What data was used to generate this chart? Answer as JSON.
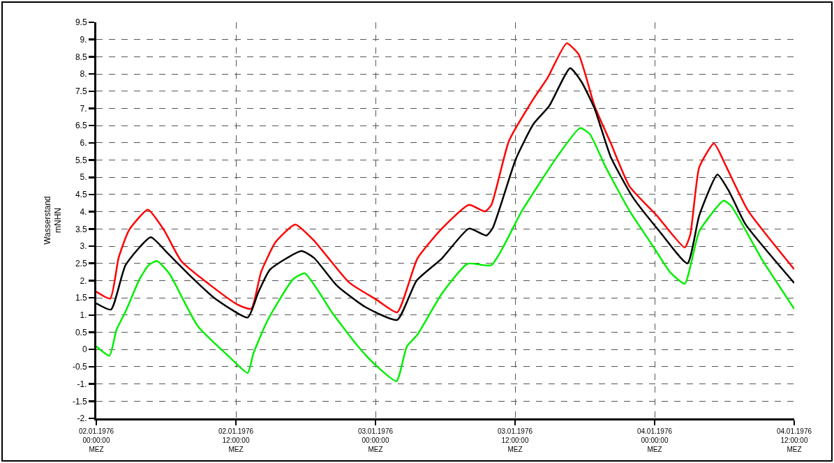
{
  "chart_data": {
    "type": "line",
    "ylabel": "Wasserstand\nmNHN",
    "xlim": [
      "1976-01-02T00:00",
      "1976-01-04T12:00"
    ],
    "xticks": [
      {
        "value": "1976-01-02T00:00",
        "label": "02.01.1976\n00:00:00\nMEZ"
      },
      {
        "value": "1976-01-02T12:00",
        "label": "02.01.1976\n12:00:00\nMEZ"
      },
      {
        "value": "1976-01-03T00:00",
        "label": "03.01.1976\n00:00:00\nMEZ"
      },
      {
        "value": "1976-01-03T12:00",
        "label": "03.01.1976\n12:00:00\nMEZ"
      },
      {
        "value": "1976-01-04T00:00",
        "label": "04.01.1976\n00:00:00\nMEZ"
      },
      {
        "value": "1976-01-04T12:00",
        "label": "04.01.1976\n12:00:00\nMEZ"
      }
    ],
    "ylim": [
      -2,
      9.5
    ],
    "yticks": [
      {
        "value": -2,
        "label": "-2."
      },
      {
        "value": -1.5,
        "label": "-1.5"
      },
      {
        "value": -1,
        "label": "-1."
      },
      {
        "value": -0.5,
        "label": "-0.5"
      },
      0,
      0.5,
      {
        "value": 1,
        "label": "1."
      },
      1.5,
      {
        "value": 2,
        "label": "2."
      },
      2.5,
      {
        "value": 3,
        "label": "3."
      },
      3.5,
      {
        "value": 4,
        "label": "4."
      },
      4.5,
      {
        "value": 5,
        "label": "5."
      },
      5.5,
      {
        "value": 6,
        "label": "6."
      },
      6.5,
      {
        "value": 7,
        "label": "7."
      },
      7.5,
      {
        "value": 8,
        "label": "8."
      },
      8.5,
      {
        "value": 9,
        "label": "9."
      },
      9.5
    ],
    "grid": true,
    "marker": "none",
    "line_style": "solid",
    "series": [
      {
        "color": "#ff0000",
        "x": [
          "1976-01-02T00:00",
          "1976-01-02T01:12",
          "1976-01-02T01:55",
          "1976-01-02T02:49",
          "1976-01-02T04:26",
          "1976-01-02T05:49",
          "1976-01-02T07:19",
          "1976-01-02T09:43",
          "1976-01-02T12:07",
          "1976-01-02T13:19",
          "1976-01-02T14:10",
          "1976-01-02T15:25",
          "1976-01-02T17:06",
          "1976-01-02T18:43",
          "1976-01-02T21:43",
          "1976-01-03T00:07",
          "1976-01-03T01:52",
          "1976-01-03T03:36",
          "1976-01-03T05:42",
          "1976-01-03T08:02",
          "1976-01-03T09:25",
          "1976-01-03T09:58",
          "1976-01-03T11:28",
          "1976-01-03T13:34",
          "1976-01-03T14:49",
          "1976-01-03T16:26",
          "1976-01-03T17:28",
          "1976-01-03T18:50",
          "1976-01-03T20:13",
          "1976-01-03T21:50",
          "1976-01-04T00:11",
          "1976-01-04T02:35",
          "1976-01-04T03:04",
          "1976-01-04T03:50",
          "1976-01-04T05:06",
          "1976-01-04T06:11",
          "1976-01-04T08:02",
          "1976-01-04T12:00"
        ],
        "values": [
          1.68,
          1.48,
          2.66,
          3.47,
          4.06,
          3.47,
          2.56,
          1.89,
          1.31,
          1.18,
          2.25,
          3.12,
          3.63,
          3.16,
          1.95,
          1.44,
          1.08,
          2.64,
          3.51,
          4.2,
          4.01,
          4.2,
          6.05,
          7.27,
          7.9,
          8.89,
          8.57,
          7.07,
          6.0,
          4.74,
          3.89,
          2.96,
          3.34,
          5.29,
          5.98,
          5.29,
          4.03,
          2.33
        ]
      },
      {
        "color": "#000000",
        "x": [
          "1976-01-02T00:00",
          "1976-01-02T01:16",
          "1976-01-02T02:31",
          "1976-01-02T04:41",
          "1976-01-02T06:07",
          "1976-01-02T07:55",
          "1976-01-02T10:08",
          "1976-01-02T13:01",
          "1976-01-02T13:55",
          "1976-01-02T14:56",
          "1976-01-02T17:38",
          "1976-01-02T18:43",
          "1976-01-02T20:42",
          "1976-01-02T23:06",
          "1976-01-03T01:52",
          "1976-01-03T03:32",
          "1976-01-03T05:42",
          "1976-01-03T08:02",
          "1976-01-03T09:32",
          "1976-01-03T10:05",
          "1976-01-03T12:04",
          "1976-01-03T13:34",
          "1976-01-03T14:56",
          "1976-01-03T16:44",
          "1976-01-03T17:42",
          "1976-01-03T18:50",
          "1976-01-03T20:13",
          "1976-01-03T22:05",
          "1976-01-04T00:25",
          "1976-01-04T02:49",
          "1976-01-04T03:50",
          "1976-01-04T05:24",
          "1976-01-04T06:25",
          "1976-01-04T07:48",
          "1976-01-04T12:00"
        ],
        "values": [
          1.34,
          1.16,
          2.45,
          3.26,
          2.8,
          2.19,
          1.5,
          0.93,
          1.65,
          2.32,
          2.86,
          2.66,
          1.85,
          1.24,
          0.86,
          2.0,
          2.64,
          3.51,
          3.31,
          3.53,
          5.53,
          6.54,
          7.07,
          8.17,
          7.78,
          7.0,
          5.6,
          4.44,
          3.43,
          2.5,
          3.89,
          5.08,
          4.58,
          3.64,
          1.93
        ]
      },
      {
        "color": "#00ee00",
        "x": [
          "1976-01-02T00:00",
          "1976-01-02T01:08",
          "1976-01-02T01:44",
          "1976-01-02T02:31",
          "1976-01-02T03:43",
          "1976-01-02T04:30",
          "1976-01-02T05:13",
          "1976-01-02T06:18",
          "1976-01-02T08:42",
          "1976-01-02T11:31",
          "1976-01-02T13:01",
          "1976-01-02T13:30",
          "1976-01-02T14:42",
          "1976-01-02T16:55",
          "1976-01-02T17:56",
          "1976-01-02T20:20",
          "1976-01-02T22:30",
          "1976-01-02T23:56",
          "1976-01-03T01:48",
          "1976-01-03T02:42",
          "1976-01-03T03:36",
          "1976-01-03T05:42",
          "1976-01-03T07:55",
          "1976-01-03T09:58",
          "1976-01-03T12:36",
          "1976-01-03T15:36",
          "1976-01-03T17:35",
          "1976-01-03T18:25",
          "1976-01-03T19:48",
          "1976-01-03T21:50",
          "1976-01-03T23:56",
          "1976-01-04T01:19",
          "1976-01-04T02:35",
          "1976-01-04T03:50",
          "1976-01-04T05:56",
          "1976-01-04T06:36",
          "1976-01-04T09:11",
          "1976-01-04T12:00"
        ],
        "values": [
          0.09,
          -0.18,
          0.57,
          1.1,
          2.04,
          2.45,
          2.57,
          2.19,
          0.69,
          -0.24,
          -0.68,
          -0.12,
          0.83,
          2.04,
          2.21,
          1.04,
          0.09,
          -0.43,
          -0.92,
          0.09,
          0.43,
          1.62,
          2.49,
          2.45,
          4.03,
          5.59,
          6.43,
          6.26,
          5.29,
          4.03,
          2.96,
          2.25,
          1.91,
          3.43,
          4.32,
          4.16,
          2.64,
          1.18
        ]
      }
    ]
  }
}
